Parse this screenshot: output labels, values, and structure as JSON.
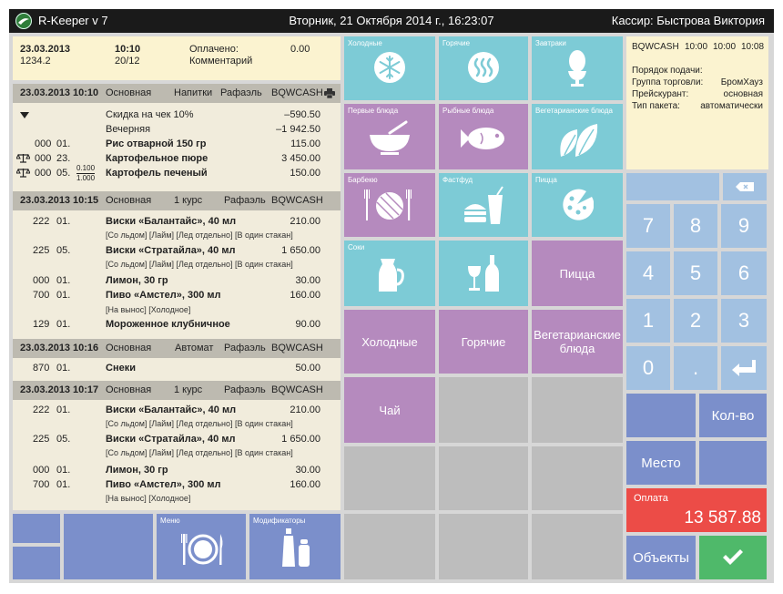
{
  "titlebar": {
    "app": "R-Keeper v 7",
    "datetime": "Вторник, 21 Октября 2014 г., 16:23:07",
    "cashier": "Кассир: Быстрова Виктория"
  },
  "order_header": {
    "date": "23.03.2013",
    "number": "1234.2",
    "time": "10:10",
    "table": "20/12",
    "paid_label": "Оплачено:",
    "paid_value": "0.00",
    "comment_label": "Комментарий"
  },
  "sections": [
    {
      "date": "23.03.2013",
      "time": "10:10",
      "type": "Основная",
      "course": "Напитки",
      "waiter": "Рафаэль",
      "station": "BQWCASH",
      "discounts": [
        {
          "name": "Скидка на чек 10%",
          "amount": "–590.50"
        },
        {
          "name": "Вечерняя",
          "amount": "–1 942.50"
        }
      ],
      "items": [
        {
          "code": "000",
          "qty": "01.",
          "name": "Рис отварной 150 гр",
          "price": "115.00"
        },
        {
          "code": "000",
          "qty": "23.",
          "name": "Картофельное пюре",
          "price": "3 450.00"
        },
        {
          "code": "000",
          "qty": "05.",
          "frac_top": "0.100",
          "frac_bottom": "1.000",
          "name": "Картофель печеный",
          "price": "150.00"
        }
      ]
    },
    {
      "date": "23.03.2013",
      "time": "10:15",
      "type": "Основная",
      "course": "1 курс",
      "waiter": "Рафаэль",
      "station": "BQWCASH",
      "items": [
        {
          "code": "222",
          "qty": "01.",
          "name": "Виски «Балантайс», 40 мл",
          "price": "210.00",
          "mod": "[Со льдом] [Лайм] [Лед отдельно] [В один стакан]"
        },
        {
          "code": "225",
          "qty": "05.",
          "name": "Виски «Стратайла», 40 мл",
          "price": "1 650.00",
          "mod": "[Со льдом] [Лайм] [Лед отдельно] [В один стакан]"
        },
        {
          "code": "000",
          "qty": "01.",
          "name": "Лимон, 30 гр",
          "price": "30.00"
        },
        {
          "code": "700",
          "qty": "01.",
          "name": "Пиво «Амстел», 300 мл",
          "price": "160.00",
          "mod": "[На вынос] [Холодное]"
        },
        {
          "code": "129",
          "qty": "01.",
          "name": "Мороженное клубничное",
          "price": "90.00"
        }
      ]
    },
    {
      "date": "23.03.2013",
      "time": "10:16",
      "type": "Основная",
      "course": "Автомат",
      "waiter": "Рафаэль",
      "station": "BQWCASH",
      "items": [
        {
          "code": "870",
          "qty": "01.",
          "name": "Снеки",
          "price": "50.00"
        }
      ]
    },
    {
      "date": "23.03.2013",
      "time": "10:17",
      "type": "Основная",
      "course": "1 курс",
      "waiter": "Рафаэль",
      "station": "BQWCASH",
      "items": [
        {
          "code": "222",
          "qty": "01.",
          "name": "Виски «Балантайс», 40 мл",
          "price": "210.00",
          "mod": "[Со льдом] [Лайм] [Лед отдельно] [В один стакан]"
        },
        {
          "code": "225",
          "qty": "05.",
          "name": "Виски «Стратайла», 40 мл",
          "price": "1 650.00",
          "mod": "[Со льдом] [Лайм] [Лед отдельно] [В один стакан]"
        },
        {
          "code": "000",
          "qty": "01.",
          "name": "Лимон, 30 гр",
          "price": "30.00"
        },
        {
          "code": "700",
          "qty": "01.",
          "name": "Пиво «Амстел», 300 мл",
          "price": "160.00",
          "mod": "[На вынос] [Холодное]"
        }
      ]
    }
  ],
  "bottom_tiles": {
    "menu": "Меню",
    "modifiers": "Модификаторы"
  },
  "categories": [
    {
      "label": "Холодные",
      "icon": "snowflake-icon"
    },
    {
      "label": "Горячие",
      "icon": "steam-icon"
    },
    {
      "label": "Завтраки",
      "icon": "egg-icon"
    },
    {
      "label": "Первые блюда",
      "icon": "soup-bowl-icon"
    },
    {
      "label": "Рыбные блюда",
      "icon": "fish-icon"
    },
    {
      "label": "Вегетарианские блюда",
      "icon": "leaves-icon"
    },
    {
      "label": "Барбекю",
      "icon": "grill-icon"
    },
    {
      "label": "Фастфуд",
      "icon": "burger-drink-icon"
    },
    {
      "label": "Пицца",
      "icon": "pizza-icon"
    },
    {
      "label": "Соки",
      "icon": "jug-icon"
    },
    {
      "label": "",
      "icon": "wine-icon"
    }
  ],
  "big_tiles": {
    "pizza": "Пицца",
    "cold": "Холодные",
    "hot": "Горячие",
    "veg": "Вегетарианские блюда",
    "tea": "Чай"
  },
  "info": {
    "station": "BQWCASH",
    "t1": "10:00",
    "t2": "10:00",
    "t3": "10:08",
    "rows": [
      {
        "label": "Порядок подачи:",
        "value": ""
      },
      {
        "label": "Группа торговли:",
        "value": "БромХауз"
      },
      {
        "label": "Прейскурант:",
        "value": "основная"
      },
      {
        "label": "Тип пакета:",
        "value": "автоматически"
      }
    ]
  },
  "keypad": {
    "keys": [
      "7",
      "8",
      "9",
      "4",
      "5",
      "6",
      "1",
      "2",
      "3",
      "0",
      "."
    ],
    "qty": "Кол-во",
    "place": "Место",
    "pay_label": "Оплата",
    "pay_amount": "13 587.88",
    "objects": "Объекты"
  },
  "colors": {
    "teal": "#7dcbd6",
    "purple": "#b58abe",
    "blue": "#7b8fcb",
    "pay_red": "#ec4c47",
    "confirm_green": "#4fb96a"
  }
}
